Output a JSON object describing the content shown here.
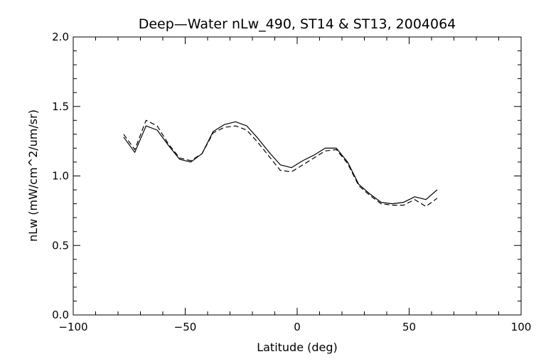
{
  "chart_data": {
    "type": "line",
    "title": "Deep—Water nLw_490, ST14 & ST13, 2004064",
    "xlabel": "Latitude (deg)",
    "ylabel": "nLw (mW/cm^2/um/sr)",
    "xlim": [
      -100,
      100
    ],
    "ylim": [
      0,
      2
    ],
    "xticks": [
      -100,
      -50,
      0,
      50,
      100
    ],
    "xtick_labels": [
      "−100",
      "−50",
      "0",
      "50",
      "100"
    ],
    "yticks": [
      0,
      0.5,
      1,
      1.5,
      2
    ],
    "ytick_labels": [
      "0.0",
      "0.5",
      "1.0",
      "1.5",
      "2.0"
    ],
    "grid": false,
    "series": [
      {
        "style": "solid",
        "color": "#000000",
        "x": [
          -77.5,
          -72.5,
          -67.5,
          -62.5,
          -57.5,
          -52.5,
          -47.5,
          -42.5,
          -37.5,
          -32.5,
          -27.5,
          -22.5,
          -17.5,
          -12.5,
          -7.5,
          -2.5,
          2.5,
          7.5,
          12.5,
          17.5,
          22.5,
          27.5,
          32.5,
          37.5,
          42.5,
          47.5,
          52.5,
          57.5,
          62.5
        ],
        "y": [
          1.28,
          1.17,
          1.36,
          1.33,
          1.22,
          1.12,
          1.1,
          1.16,
          1.32,
          1.37,
          1.39,
          1.36,
          1.27,
          1.17,
          1.08,
          1.06,
          1.11,
          1.15,
          1.2,
          1.2,
          1.1,
          0.94,
          0.87,
          0.81,
          0.8,
          0.81,
          0.85,
          0.83,
          0.9
        ]
      },
      {
        "style": "dashed",
        "color": "#000000",
        "x": [
          -77.5,
          -72.5,
          -67.5,
          -62.5,
          -57.5,
          -52.5,
          -47.5,
          -42.5,
          -37.5,
          -32.5,
          -27.5,
          -22.5,
          -17.5,
          -12.5,
          -7.5,
          -2.5,
          2.5,
          7.5,
          12.5,
          17.5,
          22.5,
          27.5,
          32.5,
          37.5,
          42.5,
          47.5,
          52.5,
          57.5,
          62.5
        ],
        "y": [
          1.3,
          1.19,
          1.4,
          1.36,
          1.23,
          1.13,
          1.11,
          1.16,
          1.31,
          1.35,
          1.36,
          1.33,
          1.24,
          1.14,
          1.04,
          1.03,
          1.08,
          1.13,
          1.18,
          1.19,
          1.09,
          0.93,
          0.86,
          0.8,
          0.79,
          0.79,
          0.83,
          0.78,
          0.84
        ]
      }
    ]
  }
}
